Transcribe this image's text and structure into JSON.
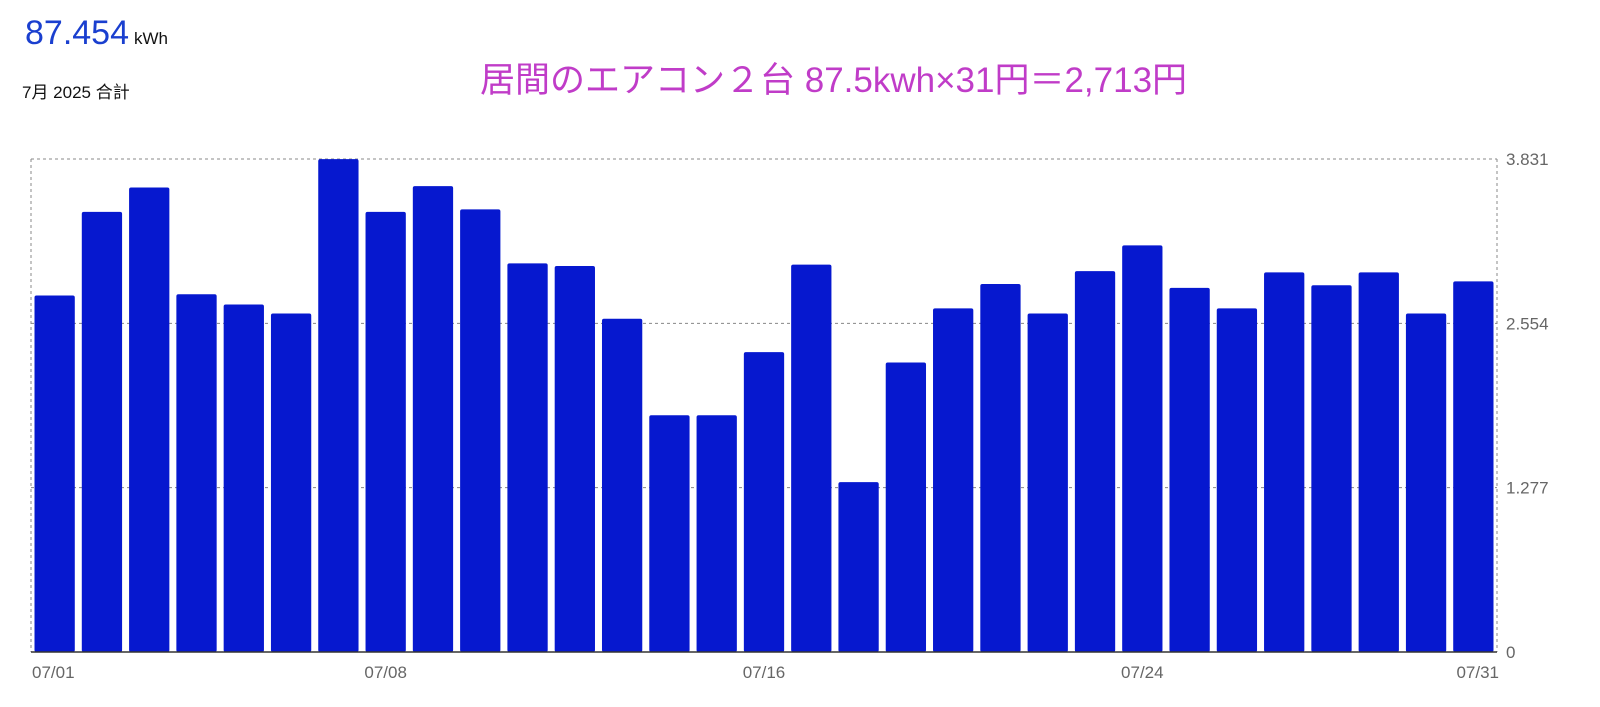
{
  "summary": {
    "total_value": "87.454",
    "total_unit": "kWh",
    "period": "7月 2025 合計"
  },
  "annotation": "居間のエアコン２台 87.5kwh×31円＝2,713円",
  "colors": {
    "bar": "#0618cf",
    "total_value": "#1a3fcf",
    "annotation": "#c03cc8",
    "grid": "#888888"
  },
  "chart_data": {
    "type": "bar",
    "categories": [
      "07/01",
      "07/02",
      "07/03",
      "07/04",
      "07/05",
      "07/06",
      "07/07",
      "07/08",
      "07/09",
      "07/10",
      "07/11",
      "07/12",
      "07/13",
      "07/14",
      "07/15",
      "07/16",
      "07/17",
      "07/18",
      "07/19",
      "07/20",
      "07/21",
      "07/22",
      "07/23",
      "07/24",
      "07/25",
      "07/26",
      "07/27",
      "07/28",
      "07/29",
      "07/30",
      "07/31"
    ],
    "values": [
      2.77,
      3.42,
      3.61,
      2.78,
      2.7,
      2.63,
      3.83,
      3.42,
      3.62,
      3.44,
      3.02,
      3.0,
      2.59,
      1.84,
      1.84,
      2.33,
      3.01,
      1.32,
      2.25,
      2.67,
      2.86,
      2.63,
      2.96,
      3.16,
      2.83,
      2.67,
      2.95,
      2.85,
      2.95,
      2.63,
      2.88
    ],
    "x_tick_labels": [
      "07/01",
      "07/08",
      "07/16",
      "07/24",
      "07/31"
    ],
    "y_ticks": [
      "3.831",
      "2.554",
      "1.277",
      "0"
    ],
    "ylim": [
      0,
      3.831
    ],
    "axis_position": "right",
    "grid": true
  }
}
